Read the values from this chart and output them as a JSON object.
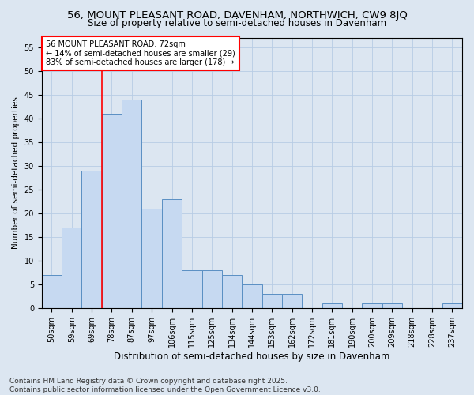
{
  "title": "56, MOUNT PLEASANT ROAD, DAVENHAM, NORTHWICH, CW9 8JQ",
  "subtitle": "Size of property relative to semi-detached houses in Davenham",
  "xlabel": "Distribution of semi-detached houses by size in Davenham",
  "ylabel": "Number of semi-detached properties",
  "categories": [
    "50sqm",
    "59sqm",
    "69sqm",
    "78sqm",
    "87sqm",
    "97sqm",
    "106sqm",
    "115sqm",
    "125sqm",
    "134sqm",
    "144sqm",
    "153sqm",
    "162sqm",
    "172sqm",
    "181sqm",
    "190sqm",
    "200sqm",
    "209sqm",
    "218sqm",
    "228sqm",
    "237sqm"
  ],
  "values": [
    7,
    17,
    29,
    41,
    44,
    21,
    23,
    8,
    8,
    7,
    5,
    3,
    3,
    0,
    1,
    0,
    1,
    1,
    0,
    0,
    1
  ],
  "bar_color": "#c6d9f1",
  "bar_edge_color": "#5a8fc3",
  "grid_color": "#b8cce4",
  "background_color": "#dce6f1",
  "vline_x_index": 2,
  "vline_color": "red",
  "annotation_title": "56 MOUNT PLEASANT ROAD: 72sqm",
  "annotation_line1": "← 14% of semi-detached houses are smaller (29)",
  "annotation_line2": "83% of semi-detached houses are larger (178) →",
  "annotation_box_color": "white",
  "annotation_box_edge": "red",
  "ylim": [
    0,
    57
  ],
  "yticks": [
    0,
    5,
    10,
    15,
    20,
    25,
    30,
    35,
    40,
    45,
    50,
    55
  ],
  "footer": "Contains HM Land Registry data © Crown copyright and database right 2025.\nContains public sector information licensed under the Open Government Licence v3.0.",
  "title_fontsize": 9.5,
  "subtitle_fontsize": 8.5,
  "xlabel_fontsize": 8.5,
  "ylabel_fontsize": 7.5,
  "tick_fontsize": 7,
  "annot_fontsize": 7,
  "footer_fontsize": 6.5
}
